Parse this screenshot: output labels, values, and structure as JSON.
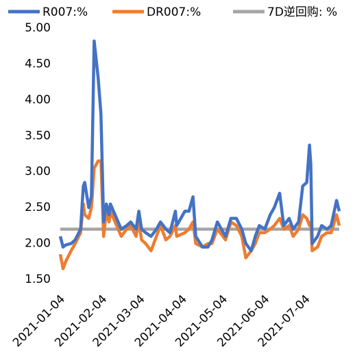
{
  "chart_data": {
    "type": "line",
    "x": [
      "2021-01-04",
      "2021-01-06",
      "2021-01-08",
      "2021-01-12",
      "2021-01-15",
      "2021-01-19",
      "2021-01-21",
      "2021-01-22",
      "2021-01-25",
      "2021-01-27",
      "2021-01-29",
      "2021-02-01",
      "2021-02-03",
      "2021-02-05",
      "2021-02-07",
      "2021-02-09",
      "2021-02-10",
      "2021-02-18",
      "2021-02-22",
      "2021-02-25",
      "2021-03-01",
      "2021-03-03",
      "2021-03-05",
      "2021-03-08",
      "2021-03-12",
      "2021-03-16",
      "2021-03-19",
      "2021-03-23",
      "2021-03-26",
      "2021-03-30",
      "2021-03-31",
      "2021-04-06",
      "2021-04-09",
      "2021-04-12",
      "2021-04-14",
      "2021-04-19",
      "2021-04-23",
      "2021-04-26",
      "2021-04-30",
      "2021-05-06",
      "2021-05-10",
      "2021-05-14",
      "2021-05-18",
      "2021-05-21",
      "2021-05-25",
      "2021-05-28",
      "2021-05-31",
      "2021-06-04",
      "2021-06-08",
      "2021-06-11",
      "2021-06-15",
      "2021-06-18",
      "2021-06-22",
      "2021-06-25",
      "2021-06-29",
      "2021-07-02",
      "2021-07-05",
      "2021-07-07",
      "2021-07-08",
      "2021-07-09",
      "2021-07-13",
      "2021-07-16",
      "2021-07-20",
      "2021-07-23",
      "2021-07-27",
      "2021-07-29"
    ],
    "series": [
      {
        "name": "R007:%",
        "color": "#4472c4",
        "values": [
          2.1,
          1.95,
          1.98,
          2.0,
          2.05,
          2.2,
          2.8,
          2.85,
          2.5,
          2.65,
          4.82,
          4.3,
          3.8,
          2.3,
          2.55,
          2.4,
          2.55,
          2.2,
          2.25,
          2.3,
          2.2,
          2.45,
          2.2,
          2.15,
          2.1,
          2.2,
          2.3,
          2.2,
          2.15,
          2.45,
          2.25,
          2.45,
          2.45,
          2.65,
          2.1,
          1.95,
          1.95,
          2.05,
          2.3,
          2.1,
          2.35,
          2.35,
          2.2,
          2.0,
          1.9,
          2.1,
          2.25,
          2.2,
          2.4,
          2.5,
          2.7,
          2.25,
          2.35,
          2.2,
          2.3,
          2.8,
          2.85,
          3.37,
          3.1,
          2.0,
          2.1,
          2.25,
          2.2,
          2.25,
          2.6,
          2.45
        ]
      },
      {
        "name": "DR007:%",
        "color": "#ed7d31",
        "values": [
          1.85,
          1.65,
          1.75,
          1.9,
          2.0,
          2.15,
          2.55,
          2.4,
          2.35,
          2.5,
          3.05,
          3.15,
          3.15,
          2.1,
          2.45,
          2.3,
          2.45,
          2.1,
          2.2,
          2.25,
          2.1,
          2.3,
          2.05,
          2.0,
          1.9,
          2.1,
          2.25,
          2.05,
          2.1,
          2.25,
          2.1,
          2.15,
          2.2,
          2.3,
          2.0,
          1.95,
          2.0,
          2.0,
          2.2,
          2.05,
          2.3,
          2.25,
          2.1,
          1.8,
          1.9,
          2.0,
          2.15,
          2.15,
          2.2,
          2.25,
          2.35,
          2.2,
          2.25,
          2.1,
          2.2,
          2.4,
          2.35,
          2.25,
          2.3,
          1.9,
          1.95,
          2.1,
          2.15,
          2.15,
          2.4,
          2.25
        ]
      },
      {
        "name": "7D逆回购: %",
        "color": "#a5a5a5",
        "values": [
          2.2,
          2.2,
          2.2,
          2.2,
          2.2,
          2.2,
          2.2,
          2.2,
          2.2,
          2.2,
          2.2,
          2.2,
          2.2,
          2.2,
          2.2,
          2.2,
          2.2,
          2.2,
          2.2,
          2.2,
          2.2,
          2.2,
          2.2,
          2.2,
          2.2,
          2.2,
          2.2,
          2.2,
          2.2,
          2.2,
          2.2,
          2.2,
          2.2,
          2.2,
          2.2,
          2.2,
          2.2,
          2.2,
          2.2,
          2.2,
          2.2,
          2.2,
          2.2,
          2.2,
          2.2,
          2.2,
          2.2,
          2.2,
          2.2,
          2.2,
          2.2,
          2.2,
          2.2,
          2.2,
          2.2,
          2.2,
          2.2,
          2.2,
          2.2,
          2.2,
          2.2,
          2.2,
          2.2,
          2.2,
          2.2,
          2.2
        ]
      }
    ],
    "xlim": [
      "2021-01-04",
      "2021-07-30"
    ],
    "xticks": [
      "2021-01-04",
      "2021-02-04",
      "2021-03-04",
      "2021-04-04",
      "2021-05-04",
      "2021-06-04",
      "2021-07-04"
    ],
    "ylim": [
      1.5,
      5
    ],
    "yticks": [
      {
        "value": 1.5,
        "label": "1.50"
      },
      {
        "value": 2,
        "label": "2.00"
      },
      {
        "value": 2.5,
        "label": "2.50"
      },
      {
        "value": 3,
        "label": "3.00"
      },
      {
        "value": 3.5,
        "label": "3.50"
      },
      {
        "value": 4,
        "label": "4.00"
      },
      {
        "value": 4.5,
        "label": "4.50"
      },
      {
        "value": 5,
        "label": "5.00"
      }
    ],
    "legend": "top"
  }
}
